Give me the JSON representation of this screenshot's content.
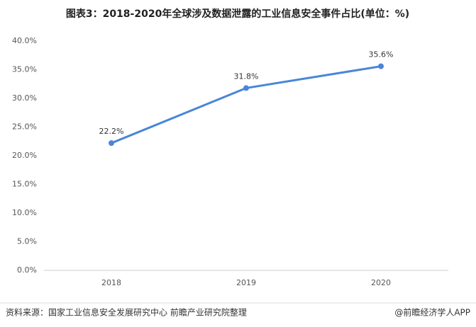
{
  "chart_data": {
    "type": "line",
    "title": "图表3：2018-2020年全球涉及数据泄露的工业信息安全事件占比(单位：%)",
    "categories": [
      "2018",
      "2019",
      "2020"
    ],
    "series": [
      {
        "color": "#4a86d8",
        "values": [
          22.2,
          31.8,
          35.6
        ],
        "value_labels": [
          "22.2%",
          "31.8%",
          "35.6%"
        ]
      }
    ],
    "ylim": [
      0,
      40
    ],
    "yticks": [
      {
        "value": 0,
        "label": "0.0%"
      },
      {
        "value": 5,
        "label": "5.0%"
      },
      {
        "value": 10,
        "label": "10.0%"
      },
      {
        "value": 15,
        "label": "15.0%"
      },
      {
        "value": 20,
        "label": "20.0%"
      },
      {
        "value": 25,
        "label": "25.0%"
      },
      {
        "value": 30,
        "label": "30.0%"
      },
      {
        "value": 35,
        "label": "35.0%"
      },
      {
        "value": 40,
        "label": "40.0%"
      }
    ],
    "grid": false
  },
  "footer": {
    "source": "资料来源：国家工业信息安全发展研究中心 前瞻产业研究院整理",
    "credit": "@前瞻经济学人APP"
  }
}
